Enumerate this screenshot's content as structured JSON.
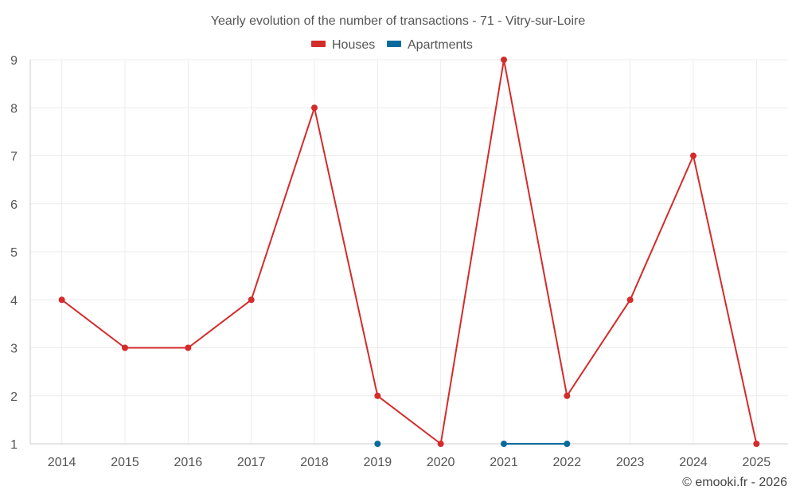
{
  "chart_data": {
    "type": "line",
    "title": "Yearly evolution of the number of transactions - 71 - Vitry-sur-Loire",
    "x": [
      "2014",
      "2015",
      "2016",
      "2017",
      "2018",
      "2019",
      "2020",
      "2021",
      "2022",
      "2023",
      "2024",
      "2025"
    ],
    "series": [
      {
        "name": "Houses",
        "color": "#d42b2b",
        "values": [
          4,
          3,
          3,
          4,
          8,
          2,
          1,
          9,
          2,
          4,
          7,
          1
        ]
      },
      {
        "name": "Apartments",
        "color": "#0b6a9c",
        "values": [
          null,
          null,
          null,
          null,
          null,
          1,
          null,
          1,
          1,
          null,
          null,
          null
        ]
      }
    ],
    "yticks": [
      "1",
      "2",
      "3",
      "4",
      "5",
      "6",
      "7",
      "8",
      "9"
    ],
    "ylim": [
      1,
      9
    ],
    "grid": true,
    "legend_position": "top-center"
  },
  "credit": "© emooki.fr - 2026"
}
